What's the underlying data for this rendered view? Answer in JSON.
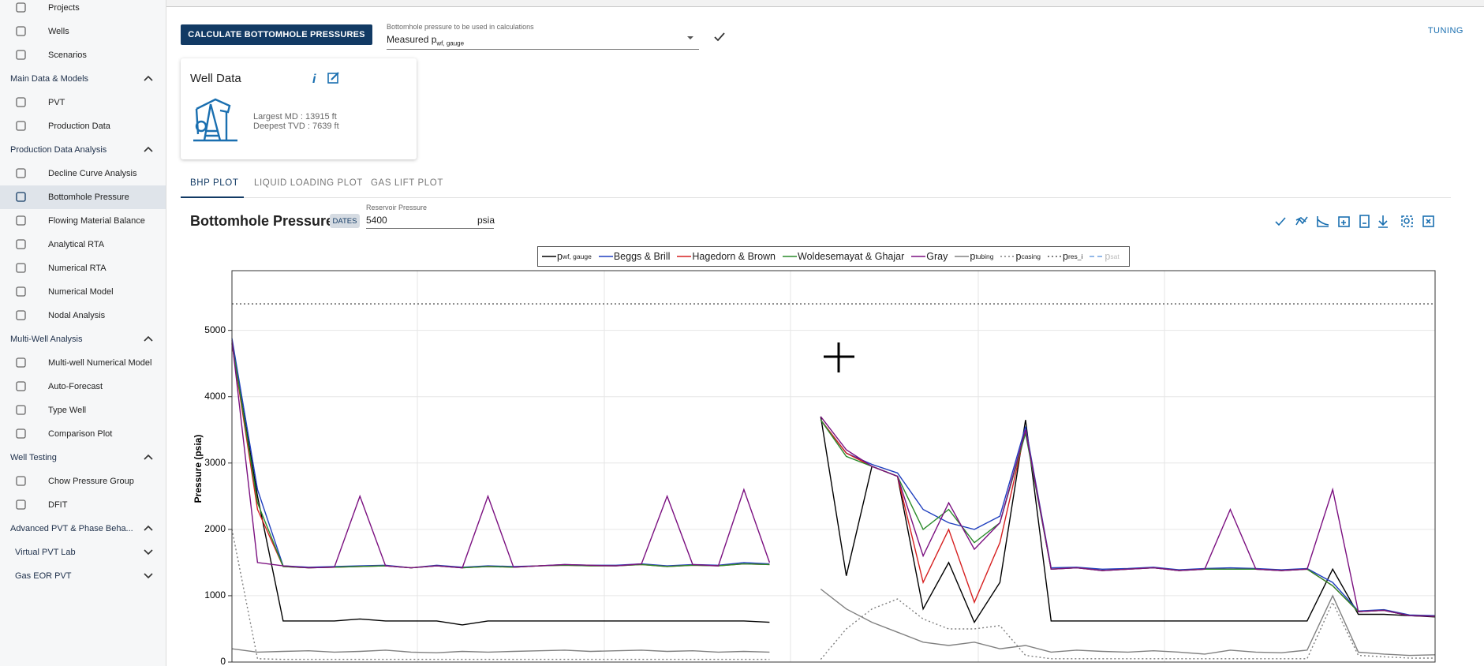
{
  "sidebar": [
    {
      "label": "Projects"
    },
    {
      "label": "Wells"
    },
    {
      "label": "Scenarios"
    },
    {
      "label": "Main Data & Models",
      "header": true,
      "expanded": true
    },
    {
      "label": "PVT"
    },
    {
      "label": "Production Data"
    },
    {
      "label": "Production Data Analysis",
      "header": true,
      "expanded": true
    },
    {
      "label": "Decline Curve Analysis"
    },
    {
      "label": "Bottomhole Pressure",
      "selected": true
    },
    {
      "label": "Flowing Material Balance"
    },
    {
      "label": "Analytical RTA"
    },
    {
      "label": "Numerical RTA"
    },
    {
      "label": "Numerical Model"
    },
    {
      "label": "Nodal Analysis"
    },
    {
      "label": "Multi-Well Analysis",
      "header": true,
      "expanded": true
    },
    {
      "label": "Multi-well Numerical Model"
    },
    {
      "label": "Auto-Forecast"
    },
    {
      "label": "Type Well"
    },
    {
      "label": "Comparison Plot"
    },
    {
      "label": "Well Testing",
      "header": true,
      "expanded": true
    },
    {
      "label": "Chow Pressure Group"
    },
    {
      "label": "DFIT"
    },
    {
      "label": "Advanced PVT & Phase Beha...",
      "header": true,
      "expanded": true
    },
    {
      "label": "Virtual PVT Lab",
      "subheader": true,
      "expanded": false
    },
    {
      "label": "Gas EOR PVT",
      "subheader": true,
      "expanded": false
    }
  ],
  "toolbar": {
    "button": "CALCULATE BOTTOMHOLE PRESSURES",
    "select_label": "Bottomhole pressure to be used in calculations",
    "select_value": "Measured p",
    "select_value_sub": "wf, gauge",
    "link": "TUNING"
  },
  "well_card": {
    "title": "Well Data",
    "lines": [
      "Largest MD :  13915 ft",
      "Deepest TVD :  7639 ft"
    ]
  },
  "tabs": [
    {
      "label": "BHP PLOT",
      "active": true
    },
    {
      "label": "LIQUID LOADING PLOT"
    },
    {
      "label": "GAS LIFT PLOT"
    }
  ],
  "plot_header": {
    "title": "Bottomhole Pressure",
    "chip": "DATES",
    "input_label": "Reservoir Pressure",
    "input_value": "5400",
    "unit": "psia"
  },
  "chart_data": {
    "type": "line",
    "ylabel": "Pressure (psia)",
    "ylim": [
      0,
      5900
    ],
    "yticks": [
      0,
      1000,
      2000,
      3000,
      4000,
      5000
    ],
    "grid": true,
    "series": [
      {
        "name": "p",
        "subscript": "wf, gauge",
        "color": "#000000",
        "values": [
          4800,
          2500,
          620,
          620,
          620,
          650,
          620,
          620,
          620,
          560,
          620,
          620,
          620,
          620,
          620,
          620,
          620,
          620,
          620,
          620,
          620,
          600,
          null,
          3700,
          1300,
          2950,
          2800,
          800,
          1500,
          600,
          1200,
          3650,
          620,
          620,
          620,
          620,
          620,
          620,
          620,
          620,
          620,
          620,
          620,
          1400,
          720,
          720,
          700,
          680
        ]
      },
      {
        "name": "Beggs & Brill",
        "color": "#1f3fbf",
        "values": [
          4880,
          2600,
          1450,
          1430,
          1440,
          1450,
          1460,
          1420,
          1460,
          1430,
          1450,
          1440,
          1450,
          1470,
          1460,
          1460,
          1480,
          1450,
          1470,
          1460,
          1500,
          1480,
          null,
          3650,
          3150,
          2980,
          2850,
          2300,
          2100,
          2000,
          2200,
          3550,
          1420,
          1430,
          1400,
          1410,
          1430,
          1390,
          1410,
          1420,
          1410,
          1390,
          1410,
          1200,
          770,
          790,
          710,
          700
        ]
      },
      {
        "name": "Hagedorn & Brown",
        "color": "#d62020",
        "values": [
          4800,
          2300,
          1440,
          1420,
          1430,
          1440,
          1450,
          1420,
          1450,
          1420,
          1440,
          1430,
          1450,
          1460,
          1450,
          1450,
          1470,
          1440,
          1460,
          1450,
          1480,
          1470,
          null,
          3650,
          3150,
          2950,
          2800,
          1200,
          2000,
          900,
          1800,
          3500,
          1400,
          1420,
          1380,
          1400,
          1420,
          1380,
          1400,
          1400,
          1400,
          1380,
          1400,
          1150,
          760,
          780,
          700,
          690
        ]
      },
      {
        "name": "Woldesemayat & Ghajar",
        "color": "#2a8a2a",
        "values": [
          4820,
          2400,
          1440,
          1420,
          1430,
          1440,
          1450,
          1420,
          1450,
          1420,
          1440,
          1430,
          1450,
          1460,
          1450,
          1450,
          1470,
          1440,
          1460,
          1450,
          1480,
          1470,
          null,
          3650,
          3100,
          2950,
          2800,
          2000,
          2300,
          1800,
          2100,
          3450,
          1400,
          1420,
          1380,
          1400,
          1420,
          1380,
          1400,
          1400,
          1400,
          1380,
          1400,
          1150,
          760,
          780,
          700,
          690
        ]
      },
      {
        "name": "Gray",
        "color": "#7b1080",
        "values": [
          4850,
          1500,
          1450,
          1420,
          1430,
          2500,
          1450,
          1420,
          1450,
          1420,
          2500,
          1430,
          1450,
          1470,
          1460,
          1450,
          1480,
          2500,
          1470,
          1450,
          2600,
          1500,
          null,
          3700,
          3200,
          2950,
          2800,
          1600,
          2400,
          1700,
          2100,
          3500,
          1400,
          1420,
          1380,
          1400,
          1420,
          1380,
          1400,
          2300,
          1400,
          1380,
          1400,
          2600,
          760,
          780,
          700,
          690
        ]
      },
      {
        "name": "p",
        "subscript": "tubing",
        "color": "#808080",
        "values": [
          200,
          150,
          160,
          170,
          150,
          160,
          180,
          150,
          140,
          160,
          150,
          160,
          170,
          180,
          160,
          170,
          180,
          160,
          170,
          150,
          160,
          150,
          null,
          1100,
          800,
          600,
          450,
          300,
          250,
          300,
          200,
          250,
          150,
          180,
          160,
          150,
          170,
          150,
          120,
          180,
          150,
          140,
          180,
          1000,
          150,
          120,
          100,
          110
        ]
      },
      {
        "name": "p",
        "subscript": "casing",
        "color": "#808080",
        "dash": "dotted",
        "values": [
          2000,
          50,
          40,
          40,
          40,
          40,
          40,
          40,
          40,
          40,
          40,
          40,
          40,
          40,
          40,
          40,
          40,
          40,
          40,
          40,
          40,
          40,
          null,
          40,
          500,
          800,
          950,
          650,
          500,
          500,
          550,
          100,
          50,
          50,
          50,
          50,
          50,
          50,
          50,
          50,
          50,
          50,
          50,
          900,
          100,
          80,
          60,
          60
        ]
      },
      {
        "name": "p",
        "subscript": "res_i",
        "color": "#555555",
        "dash": "dotted",
        "value": 5400
      },
      {
        "name": "p",
        "subscript": "sat",
        "color": "#6fa0e0",
        "dash": "dashed",
        "hidden": true
      }
    ]
  }
}
